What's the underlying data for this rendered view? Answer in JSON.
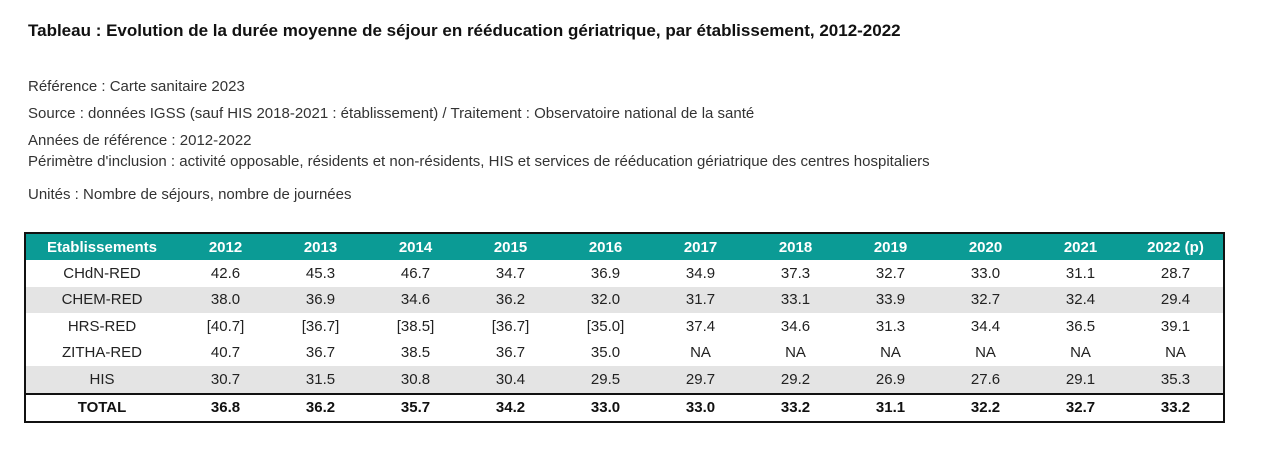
{
  "title": "Tableau : Evolution de la durée moyenne de séjour en rééducation gériatrique, par établissement, 2012-2022",
  "meta": {
    "reference": "Référence : Carte sanitaire 2023",
    "source": "Source : données IGSS (sauf HIS 2018-2021 : établissement) / Traitement : Observatoire national de la santé",
    "years": "Années de référence : 2012-2022",
    "perimeter": "Périmètre d'inclusion : activité opposable, résidents et non-résidents, HIS et services de rééducation gériatrique des centres hospitaliers",
    "units": "Unités : Nombre de séjours, nombre de journées"
  },
  "table": {
    "headers": [
      "Etablissements",
      "2012",
      "2013",
      "2014",
      "2015",
      "2016",
      "2017",
      "2018",
      "2019",
      "2020",
      "2021",
      "2022 (p)"
    ],
    "rows": [
      [
        "CHdN-RED",
        "42.6",
        "45.3",
        "46.7",
        "34.7",
        "36.9",
        "34.9",
        "37.3",
        "32.7",
        "33.0",
        "31.1",
        "28.7"
      ],
      [
        "CHEM-RED",
        "38.0",
        "36.9",
        "34.6",
        "36.2",
        "32.0",
        "31.7",
        "33.1",
        "33.9",
        "32.7",
        "32.4",
        "29.4"
      ],
      [
        "HRS-RED",
        "[40.7]",
        "[36.7]",
        "[38.5]",
        "[36.7]",
        "[35.0]",
        "37.4",
        "34.6",
        "31.3",
        "34.4",
        "36.5",
        "39.1"
      ],
      [
        "ZITHA-RED",
        "40.7",
        "36.7",
        "38.5",
        "36.7",
        "35.0",
        "NA",
        "NA",
        "NA",
        "NA",
        "NA",
        "NA"
      ],
      [
        "HIS",
        "30.7",
        "31.5",
        "30.8",
        "30.4",
        "29.5",
        "29.7",
        "29.2",
        "26.9",
        "27.6",
        "29.1",
        "35.3"
      ]
    ],
    "total": [
      "TOTAL",
      "36.8",
      "36.2",
      "35.7",
      "34.2",
      "33.0",
      "33.0",
      "33.2",
      "31.1",
      "32.2",
      "32.7",
      "33.2"
    ]
  },
  "colors": {
    "header_bg": "#0b9b95",
    "header_text": "#ffffff",
    "alt_row_bg": "#e4e4e4"
  }
}
